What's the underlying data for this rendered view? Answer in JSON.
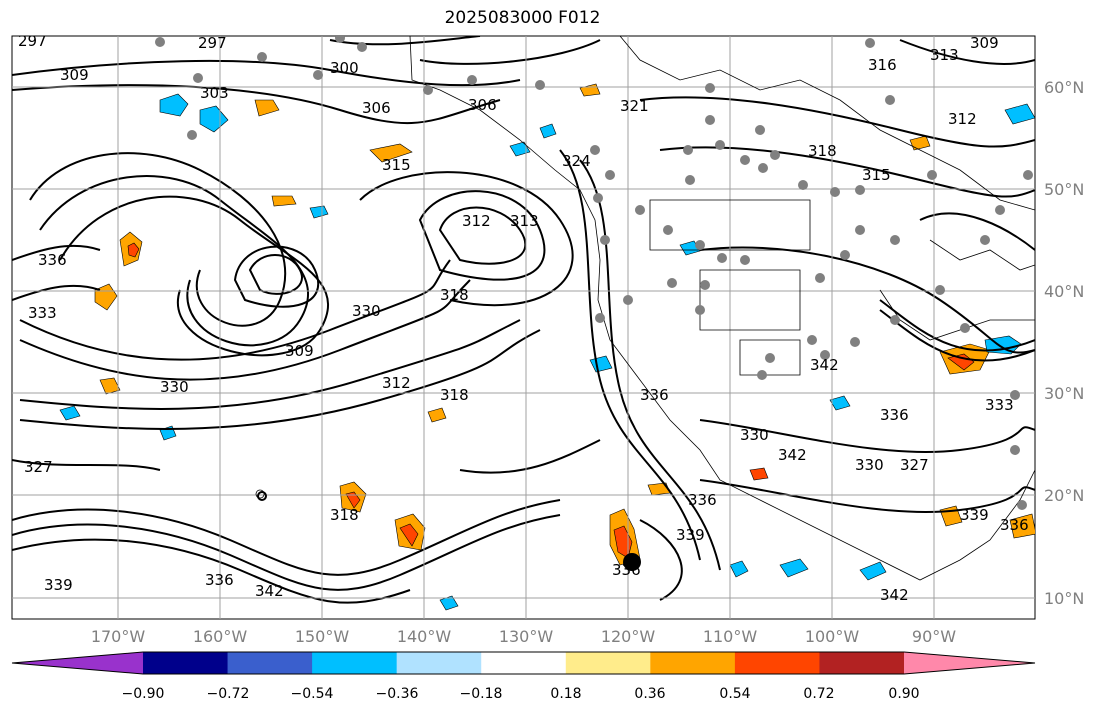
{
  "title": "2025083000 F012",
  "latitude_labels": [
    "60°N",
    "50°N",
    "40°N",
    "30°N",
    "20°N",
    "10°N"
  ],
  "longitude_labels": [
    "170°W",
    "160°W",
    "150°W",
    "140°W",
    "130°W",
    "120°W",
    "110°W",
    "100°W",
    "90°W"
  ],
  "contour_labels": [
    "297",
    "297",
    "309",
    "303",
    "300",
    "306",
    "321",
    "316",
    "313",
    "309",
    "306",
    "315",
    "324",
    "312",
    "313",
    "318",
    "315",
    "312",
    "336",
    "333",
    "330",
    "309",
    "327",
    "312",
    "318",
    "318",
    "336",
    "339",
    "342",
    "330",
    "336",
    "327",
    "336",
    "342",
    "339",
    "336",
    "336",
    "330",
    "342",
    "333",
    "330",
    "336",
    "339",
    "342",
    "318"
  ],
  "colorbar": {
    "tick_labels": [
      "−0.90",
      "−0.72",
      "−0.54",
      "−0.36",
      "−0.18",
      "0.18",
      "0.36",
      "0.54",
      "0.72",
      "0.90"
    ],
    "colors": [
      "#9932cc",
      "#00008b",
      "#3a5fcd",
      "#00bfff",
      "#b0e2ff",
      "#ffffff",
      "#ffec8b",
      "#ffa500",
      "#ff4500",
      "#b22222",
      "#ff88aa"
    ]
  }
}
